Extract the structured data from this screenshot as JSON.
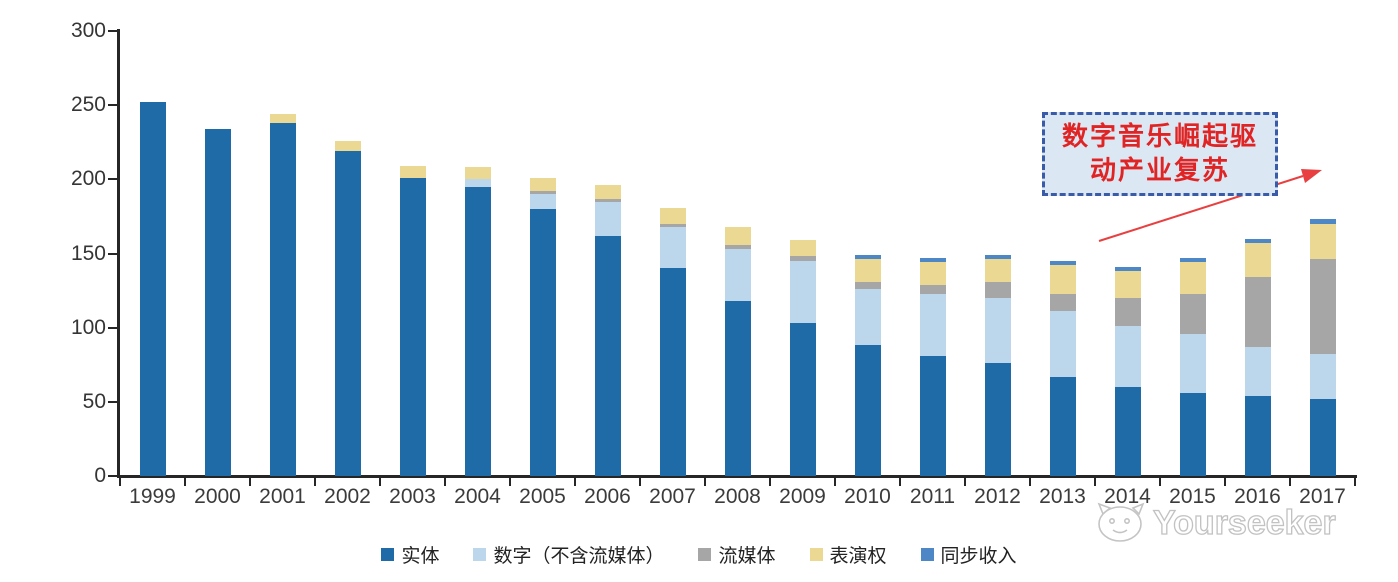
{
  "chart_data": {
    "type": "bar",
    "stacked": true,
    "categories": [
      "1999",
      "2000",
      "2001",
      "2002",
      "2003",
      "2004",
      "2005",
      "2006",
      "2007",
      "2008",
      "2009",
      "2010",
      "2011",
      "2012",
      "2013",
      "2014",
      "2015",
      "2016",
      "2017"
    ],
    "series": [
      {
        "name": "实体",
        "color": "#1f6ba8",
        "values": [
          252,
          234,
          238,
          219,
          201,
          195,
          180,
          162,
          140,
          118,
          103,
          88,
          81,
          76,
          67,
          60,
          56,
          54,
          52
        ]
      },
      {
        "name": "数字（不含流媒体）",
        "color": "#bcd6ec",
        "values": [
          0,
          0,
          0,
          0,
          0,
          5,
          10,
          23,
          28,
          35,
          42,
          38,
          42,
          44,
          44,
          41,
          40,
          33,
          30
        ]
      },
      {
        "name": "流媒体",
        "color": "#a6a6a6",
        "values": [
          0,
          0,
          0,
          0,
          0,
          0,
          2,
          2,
          2,
          3,
          3,
          5,
          6,
          11,
          12,
          19,
          27,
          47,
          64
        ]
      },
      {
        "name": "表演权",
        "color": "#ebd893",
        "values": [
          0,
          0,
          6,
          7,
          8,
          8,
          9,
          9,
          11,
          12,
          11,
          15,
          15,
          15,
          19,
          18,
          21,
          23,
          24
        ]
      },
      {
        "name": "同步收入",
        "color": "#4e87c5",
        "values": [
          0,
          0,
          0,
          0,
          0,
          0,
          0,
          0,
          0,
          0,
          0,
          3,
          3,
          3,
          3,
          3,
          3,
          3,
          3
        ]
      }
    ],
    "ylim": [
      0,
      300
    ],
    "yticks": [
      0,
      50,
      100,
      150,
      200,
      250,
      300
    ],
    "grid": false,
    "legend_position": "bottom"
  },
  "annotation": {
    "line1": "数字音乐崛起驱",
    "line2": "动产业复苏",
    "fill_color": "#dce7f4",
    "border_color": "#3a5ca8",
    "text_color": "#e02424",
    "arrow_color": "#e84040"
  },
  "watermark": {
    "text": "Yourseeker"
  }
}
